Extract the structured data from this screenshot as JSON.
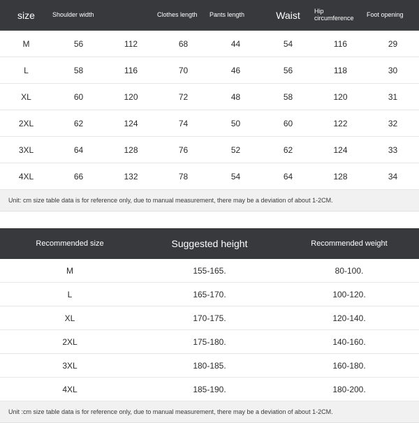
{
  "table1": {
    "type": "table",
    "header_bg": "#37393c",
    "header_fg": "#ffffff",
    "row_border": "#e6e7e8",
    "columns": [
      {
        "label": "size",
        "style": "big"
      },
      {
        "label": "Shoulder width",
        "style": "small"
      },
      {
        "label": "",
        "style": "small"
      },
      {
        "label": "Clothes length",
        "style": "small"
      },
      {
        "label": "Pants length",
        "style": "small"
      },
      {
        "label": "Waist",
        "style": "big"
      },
      {
        "label": "Hip circumference",
        "style": "small"
      },
      {
        "label": "Foot opening",
        "style": "small"
      }
    ],
    "rows": [
      [
        "M",
        "56",
        "112",
        "68",
        "44",
        "54",
        "116",
        "29"
      ],
      [
        "L",
        "58",
        "116",
        "70",
        "46",
        "56",
        "118",
        "30"
      ],
      [
        "XL",
        "60",
        "120",
        "72",
        "48",
        "58",
        "120",
        "31"
      ],
      [
        "2XL",
        "62",
        "124",
        "74",
        "50",
        "60",
        "122",
        "32"
      ],
      [
        "3XL",
        "64",
        "128",
        "76",
        "52",
        "62",
        "124",
        "33"
      ],
      [
        "4XL",
        "66",
        "132",
        "78",
        "54",
        "64",
        "128",
        "34"
      ]
    ],
    "footnote": "Unit: cm size table data is for reference only, due to manual measurement, there may be a deviation of about 1-2CM."
  },
  "table2": {
    "type": "table",
    "header_bg": "#37393c",
    "header_fg": "#ffffff",
    "row_border": "#e6e7e8",
    "columns": [
      {
        "label": "Recommended size",
        "style": "small"
      },
      {
        "label": "Suggested height",
        "style": "big"
      },
      {
        "label": "Recommended weight",
        "style": "small"
      }
    ],
    "rows": [
      [
        "M",
        "155-165.",
        "80-100."
      ],
      [
        "L",
        "165-170.",
        "100-120."
      ],
      [
        "XL",
        "170-175.",
        "120-140."
      ],
      [
        "2XL",
        "175-180.",
        "140-160."
      ],
      [
        "3XL",
        "180-185.",
        "160-180."
      ],
      [
        "4XL",
        "185-190.",
        "180-200."
      ]
    ],
    "footnote": "Unit :cm size table data is for reference only, due to manual measurement, there may be a deviation of about 1-2CM."
  }
}
